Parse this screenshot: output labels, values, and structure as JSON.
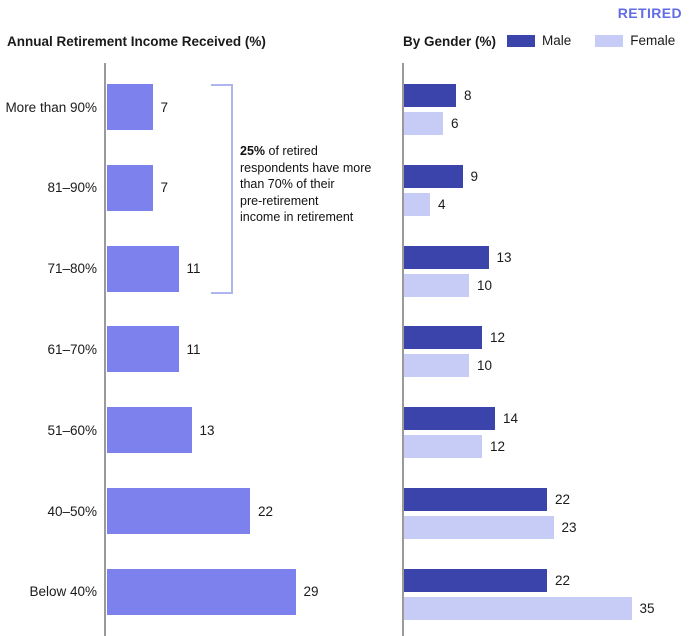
{
  "page": {
    "tag": "RETIRED",
    "tag_color": "#626ce6"
  },
  "annotation": {
    "highlight": "25%",
    "lines": [
      " of retired",
      "respondents have more",
      "than 70% of their",
      "pre-retirement",
      "income in retirement"
    ]
  },
  "bracket": {
    "color": "#b0b5f0",
    "rows_covered": "More than 90% through 71-80%"
  },
  "chart_data": [
    {
      "type": "bar",
      "orientation": "horizontal",
      "title": "Annual Retirement Income Received (%)",
      "categories": [
        "More than 90%",
        "81–90%",
        "71–80%",
        "61–70%",
        "51–60%",
        "40–50%",
        "Below 40%"
      ],
      "values": [
        7,
        7,
        11,
        11,
        13,
        22,
        29
      ],
      "bar_color": "#7c81ee",
      "axis_color": "#9a9a9a",
      "value_labels": true,
      "grid": false,
      "xlim": [
        0,
        32
      ]
    },
    {
      "type": "bar",
      "orientation": "horizontal",
      "title": "By Gender (%)",
      "categories": [
        "More than 90%",
        "81–90%",
        "71–80%",
        "61–70%",
        "51–60%",
        "40–50%",
        "Below 40%"
      ],
      "series": [
        {
          "name": "Male",
          "color": "#3a44ab",
          "values": [
            8,
            9,
            13,
            12,
            14,
            22,
            22
          ]
        },
        {
          "name": "Female",
          "color": "#c6ccf5",
          "values": [
            6,
            4,
            10,
            10,
            12,
            23,
            35
          ]
        }
      ],
      "axis_color": "#9a9a9a",
      "value_labels": true,
      "grid": false,
      "legend_position": "top",
      "xlim": [
        0,
        38
      ]
    }
  ]
}
